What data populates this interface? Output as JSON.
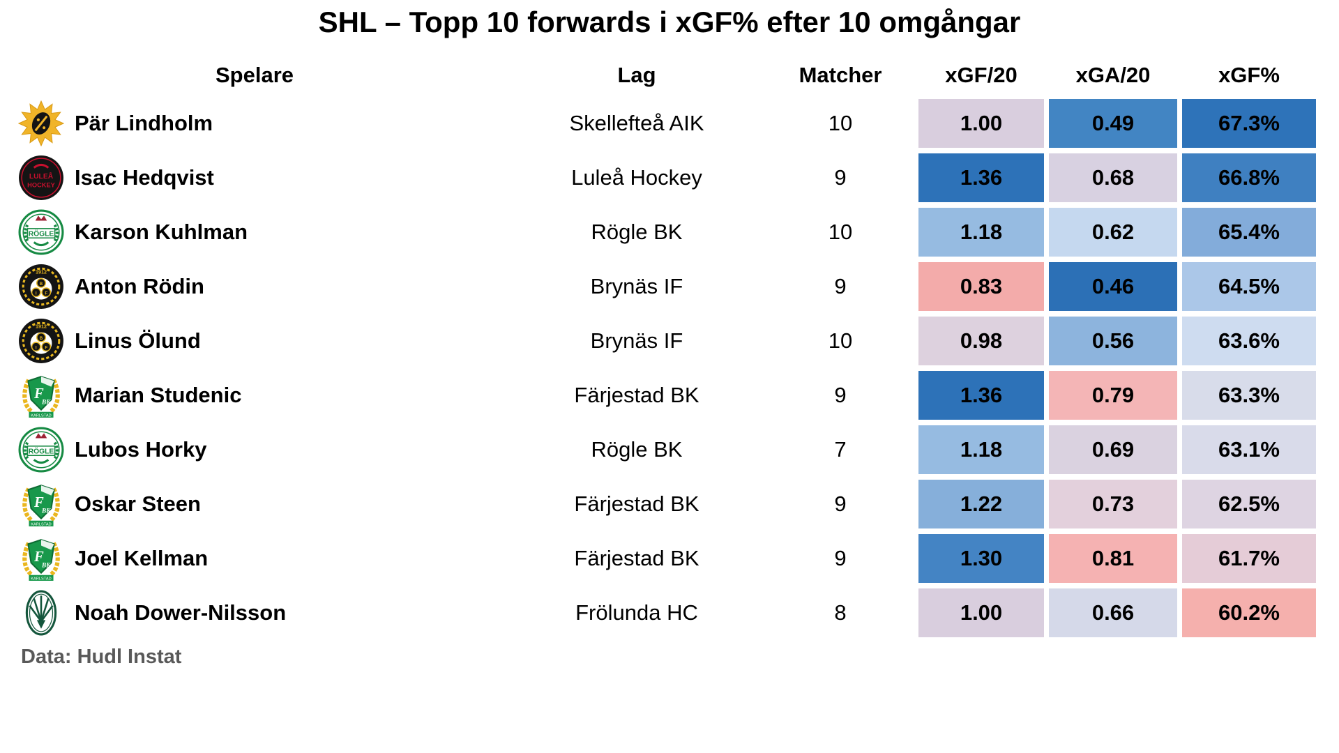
{
  "title": "SHL – Topp 10 forwards i xGF% efter 10 omgångar",
  "source": "Data: Hudl Instat",
  "colors": {
    "background": "#ffffff",
    "text": "#000000",
    "source_text": "#595959",
    "scale_low_red": "#f3abaa",
    "scale_mid_neutral": "#ddd1de",
    "scale_high_blue": "#2d72b8"
  },
  "chart_data": {
    "type": "table",
    "title": "SHL – Topp 10 forwards i xGF% efter 10 omgångar",
    "columns": [
      "Spelare",
      "Lag",
      "Matcher",
      "xGF/20",
      "xGA/20",
      "xGF%"
    ],
    "color_scale": "diverging: red = weak value, blue = strong value",
    "rows": [
      {
        "player": "Pär Lindholm",
        "team": "Skellefteå AIK",
        "logo": "skelleftea-aik-logo",
        "matches": "10",
        "xgf20": "1.00",
        "xga20": "0.49",
        "xgf_pct": "67.3%",
        "xgf20_color": "#d9cede",
        "xga20_color": "#4285c3",
        "xgf_pct_color": "#2e73b9"
      },
      {
        "player": "Isac Hedqvist",
        "team": "Luleå Hockey",
        "logo": "lulea-hockey-logo",
        "matches": "9",
        "xgf20": "1.36",
        "xga20": "0.68",
        "xgf_pct": "66.8%",
        "xgf20_color": "#2d72b8",
        "xga20_color": "#d8d1e1",
        "xgf_pct_color": "#3f80c1"
      },
      {
        "player": "Karson Kuhlman",
        "team": "Rögle BK",
        "logo": "rogle-bk-logo",
        "matches": "10",
        "xgf20": "1.18",
        "xga20": "0.62",
        "xgf_pct": "65.4%",
        "xgf20_color": "#96bbe1",
        "xga20_color": "#c5d8ef",
        "xgf_pct_color": "#83acda"
      },
      {
        "player": "Anton Rödin",
        "team": "Brynäs IF",
        "logo": "brynas-if-logo",
        "matches": "9",
        "xgf20": "0.83",
        "xga20": "0.46",
        "xgf_pct": "64.5%",
        "xgf20_color": "#f3abaa",
        "xga20_color": "#2c70b6",
        "xgf_pct_color": "#abc7e8"
      },
      {
        "player": "Linus Ölund",
        "team": "Brynäs IF",
        "logo": "brynas-if-logo",
        "matches": "10",
        "xgf20": "0.98",
        "xga20": "0.56",
        "xgf_pct": "63.6%",
        "xgf20_color": "#ddd1de",
        "xga20_color": "#8db4dd",
        "xgf_pct_color": "#cedcf0"
      },
      {
        "player": "Marian Studenic",
        "team": "Färjestad BK",
        "logo": "farjestad-bk-logo",
        "matches": "9",
        "xgf20": "1.36",
        "xga20": "0.79",
        "xgf_pct": "63.3%",
        "xgf20_color": "#2d72b8",
        "xga20_color": "#f4b5b6",
        "xgf_pct_color": "#d8dcea"
      },
      {
        "player": "Lubos Horky",
        "team": "Rögle BK",
        "logo": "rogle-bk-logo",
        "matches": "7",
        "xgf20": "1.18",
        "xga20": "0.69",
        "xgf_pct": "63.1%",
        "xgf20_color": "#96bbe1",
        "xga20_color": "#dad2e0",
        "xgf_pct_color": "#d9dbea"
      },
      {
        "player": "Oskar Steen",
        "team": "Färjestad BK",
        "logo": "farjestad-bk-logo",
        "matches": "9",
        "xgf20": "1.22",
        "xga20": "0.73",
        "xgf_pct": "62.5%",
        "xgf20_color": "#86afda",
        "xga20_color": "#e3d0dc",
        "xgf_pct_color": "#ded4e2"
      },
      {
        "player": "Joel Kellman",
        "team": "Färjestad BK",
        "logo": "farjestad-bk-logo",
        "matches": "9",
        "xgf20": "1.30",
        "xga20": "0.81",
        "xgf_pct": "61.7%",
        "xgf20_color": "#4484c4",
        "xga20_color": "#f5b2b2",
        "xgf_pct_color": "#e5ccd7"
      },
      {
        "player": "Noah Dower-Nilsson",
        "team": "Frölunda HC",
        "logo": "frolunda-hc-logo",
        "matches": "8",
        "xgf20": "1.00",
        "xga20": "0.66",
        "xgf_pct": "60.2%",
        "xgf20_color": "#d9cede",
        "xga20_color": "#d5d9e9",
        "xgf_pct_color": "#f5b0ad"
      }
    ]
  }
}
